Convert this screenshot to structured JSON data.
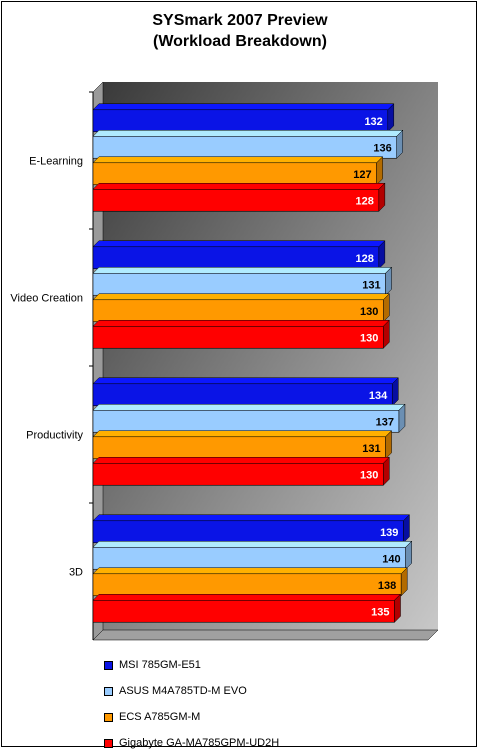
{
  "chart_data": {
    "type": "bar",
    "orientation": "horizontal",
    "title": "SYSmark 2007 Preview",
    "subtitle": "(Workload Breakdown)",
    "categories": [
      "E-Learning",
      "Video Creation",
      "Productivity",
      "3D"
    ],
    "series": [
      {
        "name": "MSI 785GM-E51",
        "color": "#0a14e6",
        "values": [
          132,
          128,
          134,
          139
        ]
      },
      {
        "name": "ASUS M4A785TD-M EVO",
        "color": "#99ccff",
        "values": [
          136,
          131,
          137,
          140
        ]
      },
      {
        "name": "ECS A785GM-M",
        "color": "#ff9900",
        "values": [
          127,
          130,
          131,
          138
        ]
      },
      {
        "name": "Gigabyte GA-MA785GPM-UD2H",
        "color": "#ff0000",
        "values": [
          128,
          130,
          130,
          135
        ]
      }
    ],
    "xlim": [
      0,
      150
    ],
    "data_labels": true,
    "legend": "bottom",
    "plot_background": "gradient dark gray to light gray"
  }
}
